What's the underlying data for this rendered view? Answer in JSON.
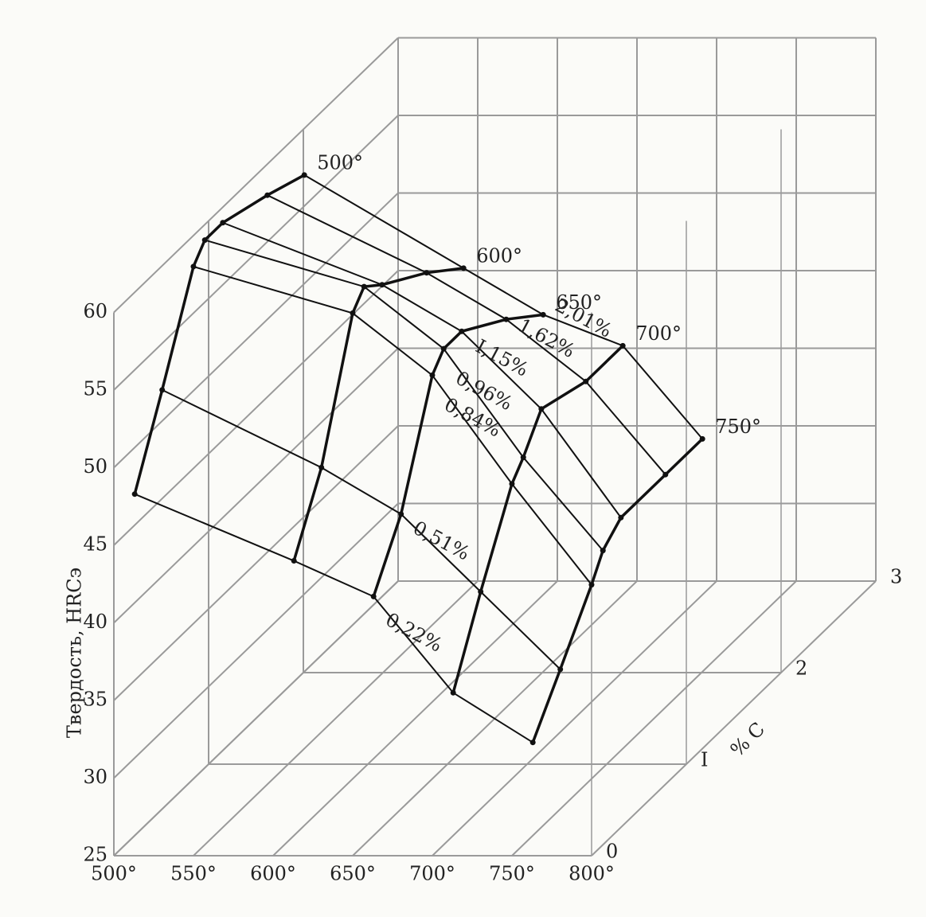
{
  "chart_data": {
    "type": "surface3d",
    "ylabel": "Твердость, HRCэ",
    "zlabel": "% C",
    "x": [
      500,
      600,
      650,
      700,
      750
    ],
    "x_labels": [
      "500°",
      "600°",
      "650°",
      "700°",
      "750°"
    ],
    "series": [
      {
        "name": "2,01%",
        "z": 2.01,
        "values": [
          57,
          51,
          48,
          46,
          40
        ]
      },
      {
        "name": "1,62%",
        "z": 1.62,
        "values": [
          58,
          53,
          50,
          46,
          40
        ]
      },
      {
        "name": "I,15%",
        "z": 1.15,
        "values": [
          59,
          55,
          52,
          47,
          40
        ]
      },
      {
        "name": "0,96%",
        "z": 0.96,
        "values": [
          59,
          56,
          52,
          45,
          39
        ]
      },
      {
        "name": "0,84%",
        "z": 0.84,
        "values": [
          58,
          55,
          51,
          44,
          37.5
        ]
      },
      {
        "name": "0,51%",
        "z": 0.51,
        "values": [
          52,
          47,
          44,
          39,
          34
        ]
      },
      {
        "name": "0,22%",
        "z": 0.22,
        "values": [
          47,
          42.7,
          40.4,
          34.2,
          31
        ]
      }
    ],
    "color": "#111111",
    "grid_color": "#9a9a9a",
    "xlim": [
      500,
      800
    ],
    "ylim": [
      25,
      60
    ],
    "zlim": [
      0,
      3
    ],
    "xticks": [
      {
        "value": 500,
        "label": "500°"
      },
      {
        "value": 550,
        "label": "550°"
      },
      {
        "value": 600,
        "label": "600°"
      },
      {
        "value": 650,
        "label": "650°"
      },
      {
        "value": 700,
        "label": "700°"
      },
      {
        "value": 750,
        "label": "750°"
      },
      {
        "value": 800,
        "label": "800°"
      }
    ],
    "yticks": [
      25,
      30,
      35,
      40,
      45,
      50,
      55,
      60
    ],
    "zticks": [
      0,
      {
        "value": 1,
        "label": "I"
      },
      2,
      3
    ],
    "grid": true
  }
}
